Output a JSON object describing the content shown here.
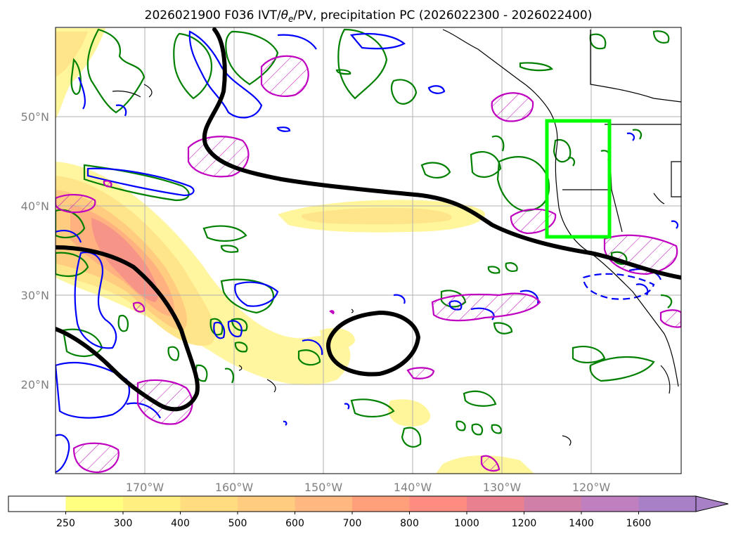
{
  "title": {
    "prefix": "2026021900 F036 IVT/",
    "theta": "θ",
    "theta_sub": "e",
    "suffix": "/PV, precipitation PC (2026022300 - 2026022400)"
  },
  "map": {
    "lon_range": [
      -180,
      -110
    ],
    "lat_range": [
      10,
      60
    ],
    "lat_ticks": [
      {
        "value": 50,
        "label": "50°N"
      },
      {
        "value": 40,
        "label": "40°N"
      },
      {
        "value": 30,
        "label": "30°N"
      },
      {
        "value": 20,
        "label": "20°N"
      }
    ],
    "lon_ticks": [
      {
        "value": -170,
        "label": "170°W"
      },
      {
        "value": -160,
        "label": "160°W"
      },
      {
        "value": -150,
        "label": "150°W"
      },
      {
        "value": -140,
        "label": "140°W"
      },
      {
        "value": -130,
        "label": "130°W"
      },
      {
        "value": -120,
        "label": "120°W"
      }
    ],
    "grid": true,
    "highlight_box": {
      "lon": [
        -125,
        -118
      ],
      "lat": [
        36.5,
        49.5
      ],
      "color": "#00ff00"
    },
    "colors": {
      "pv_contour": "#000000",
      "theta_e_positive": "#0000ff",
      "precip_region": "#008000",
      "pv_anomaly_hatched": "#c000c0",
      "coastline": "#000000"
    }
  },
  "colorbar": {
    "labels": [
      "250",
      "300",
      "400",
      "500",
      "600",
      "700",
      "800",
      "1000",
      "1200",
      "1400",
      "1600"
    ],
    "colors": [
      "#ffffff",
      "#ffff80",
      "#ffee80",
      "#ffdc80",
      "#ffcc80",
      "#ffb880",
      "#ffa07a",
      "#ff8c80",
      "#e88090",
      "#d080a8",
      "#c080c0",
      "#a880c8"
    ],
    "extend": "max"
  }
}
